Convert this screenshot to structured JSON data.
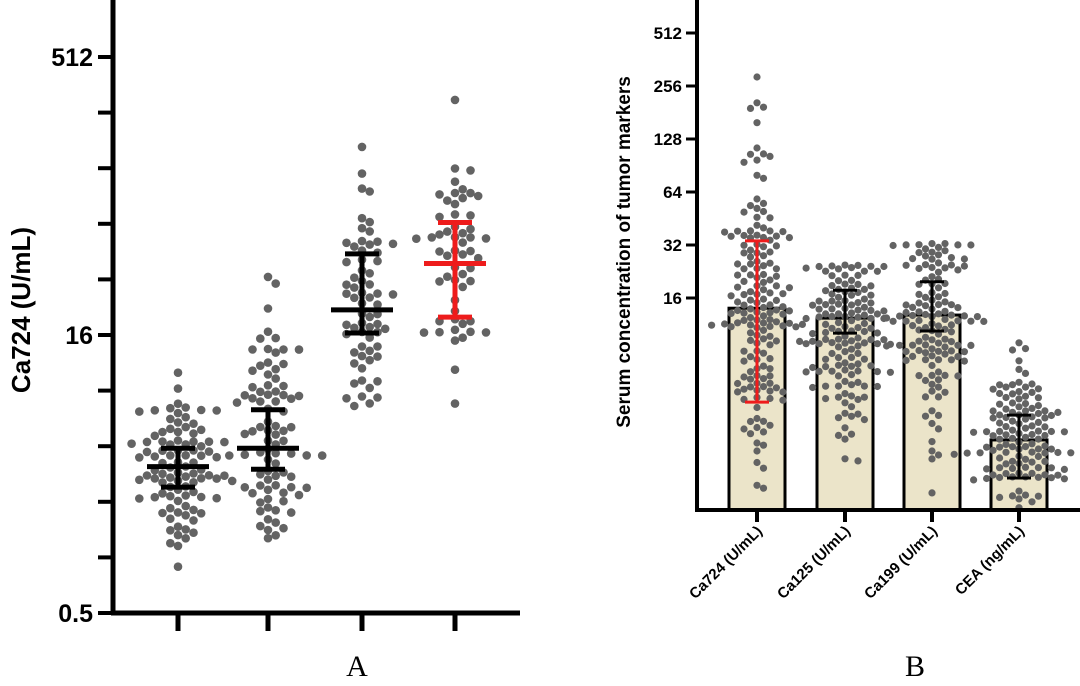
{
  "chart_data": [
    {
      "panel_label": "A",
      "type": "scatter",
      "ylabel": "Ca724 (U/mL)",
      "xlabel": "",
      "yscale": "log2",
      "ylim": [
        0.5,
        1024
      ],
      "yticks": [
        "512",
        "16",
        "0.5"
      ],
      "ytick_values": [
        512,
        16,
        0.5
      ],
      "grid": false,
      "groups": [
        {
          "category": "",
          "center": 3.1,
          "error": [
            2.4,
            3.9
          ],
          "range": [
            0.89,
            10
          ],
          "n": 95,
          "color": "#000000"
        },
        {
          "category": "",
          "center": 3.9,
          "error": [
            3.0,
            6.3
          ],
          "range": [
            1.27,
            33
          ],
          "n": 85,
          "color": "#000000"
        },
        {
          "category": "",
          "center": 21.9,
          "error": [
            16.4,
            44
          ],
          "range": [
            6.6,
            167
          ],
          "n": 65,
          "color": "#000000"
        },
        {
          "category": "",
          "center": 39,
          "error": [
            20,
            65
          ],
          "range": [
            6.8,
            300
          ],
          "n": 55,
          "color": "#ee1c1c"
        }
      ]
    },
    {
      "panel_label": "B",
      "type": "bar",
      "ylabel": "Serum concentration of tumor markers",
      "yscale": "log2",
      "ylim": [
        1,
        790
      ],
      "yticks": [
        "512",
        "256",
        "128",
        "64",
        "32",
        "16"
      ],
      "ytick_values": [
        512,
        256,
        128,
        64,
        32,
        16
      ],
      "grid": false,
      "categories": [
        "Ca724 (U/mL)",
        "Ca125 (U/mL)",
        "Ca199 (U/mL)",
        "CEA (ng/mL)"
      ],
      "values": [
        14.0,
        12.3,
        12.8,
        2.5
      ],
      "errors": [
        [
          4.1,
          33.8
        ],
        [
          10.1,
          17.7
        ],
        [
          10.4,
          19.8
        ],
        [
          1.52,
          3.46
        ]
      ],
      "error_colors": [
        "#ee1c1c",
        "#000000",
        "#000000",
        "#000000"
      ],
      "point_ranges": [
        [
          1.33,
          288
        ],
        [
          1.9,
          24.6
        ],
        [
          1.25,
          32.6
        ],
        [
          1.03,
          8.9
        ]
      ],
      "n_points": [
        300,
        260,
        240,
        230
      ]
    }
  ],
  "colors": {
    "dots": "#636363",
    "bar_fill": "#ebe4c9",
    "axis": "#000000"
  }
}
